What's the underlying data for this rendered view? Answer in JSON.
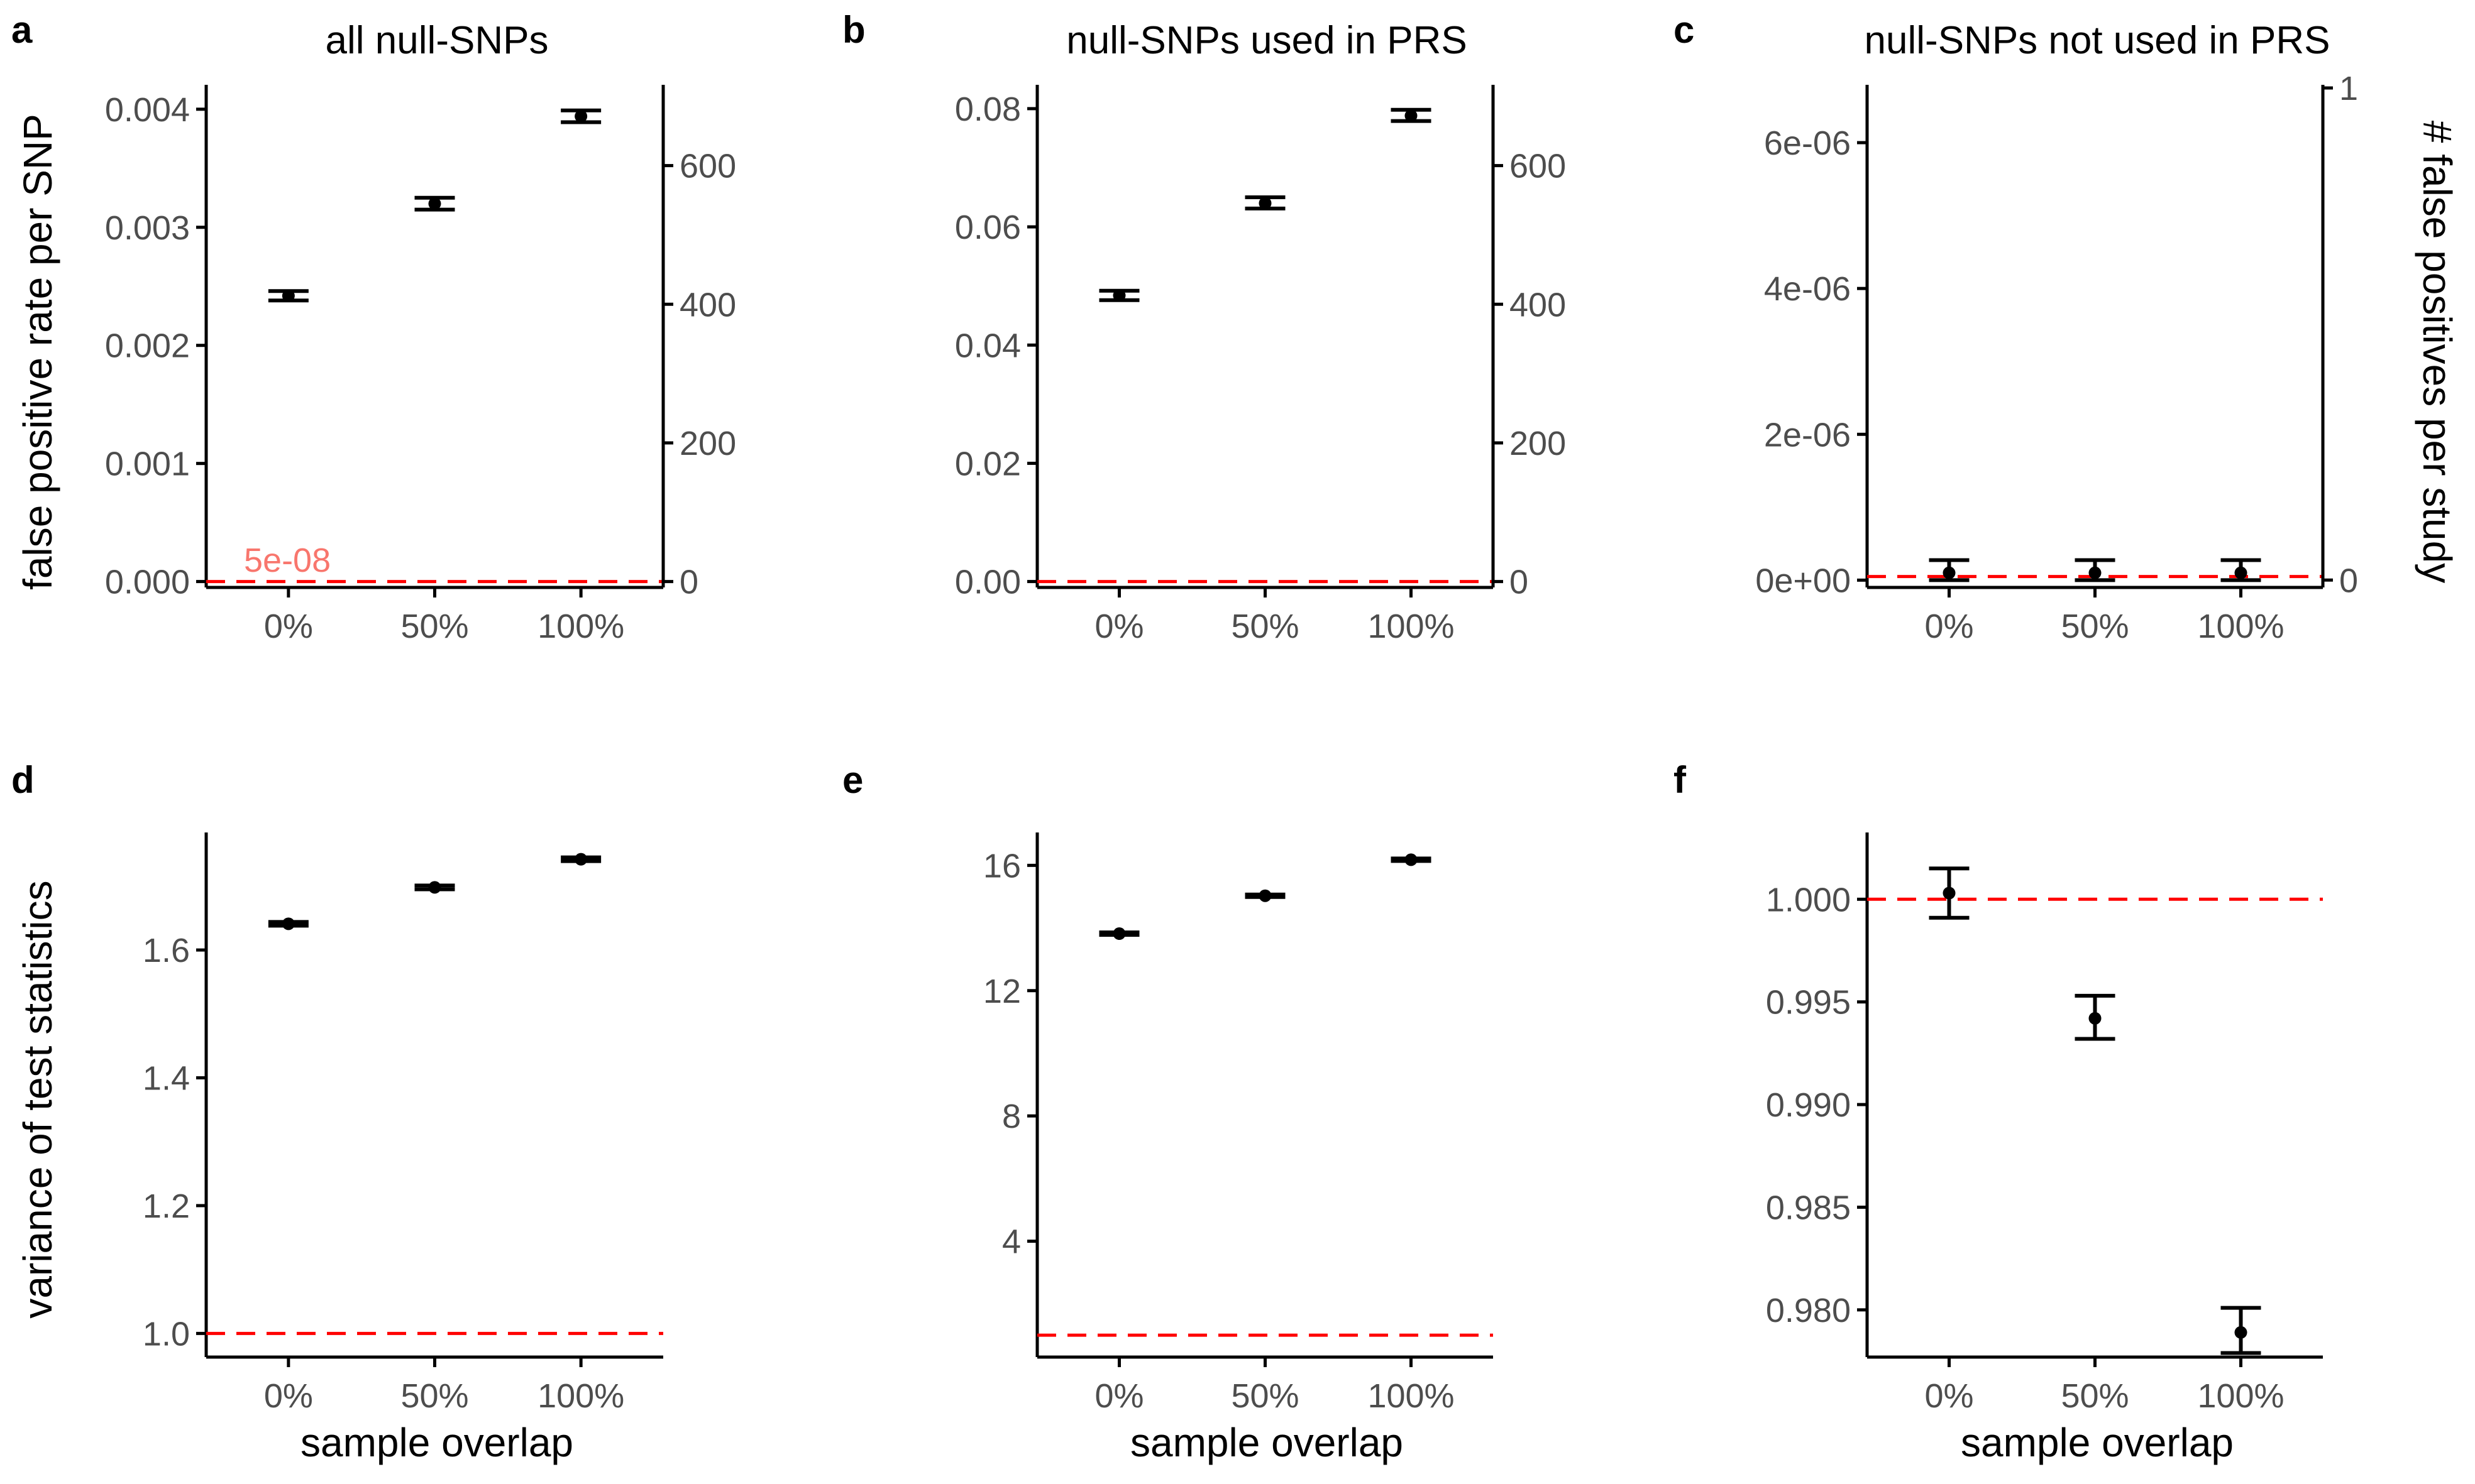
{
  "axis_titles": {
    "left_top": "false positive rate per SNP",
    "right_top": "# false positives per study",
    "left_bottom": "variance of test statistics",
    "x_bottom": "sample overlap"
  },
  "annotation": "5e-08",
  "chart_data": [
    {
      "type": "scatter",
      "panel": "a",
      "title": "all null-SNPs",
      "categories": [
        "0%",
        "50%",
        "100%"
      ],
      "values": [
        0.00242,
        0.0032,
        0.00394
      ],
      "lower": [
        0.00238,
        0.00315,
        0.00389
      ],
      "upper": [
        0.00246,
        0.00325,
        0.00399
      ],
      "ylim": [
        -5e-05,
        0.00418
      ],
      "yticks": [
        0,
        0.001,
        0.002,
        0.003,
        0.004
      ],
      "ytick_labels": [
        "0.000",
        "0.001",
        "0.002",
        "0.003",
        "0.004"
      ],
      "y2lim": [
        -8.5,
        712
      ],
      "y2ticks": [
        0,
        200,
        400,
        600
      ],
      "y2tick_labels": [
        "0",
        "200",
        "400",
        "600"
      ],
      "refline": 5e-08
    },
    {
      "type": "scatter",
      "panel": "b",
      "title": "null-SNPs used in PRS",
      "categories": [
        "0%",
        "50%",
        "100%"
      ],
      "values": [
        0.0484,
        0.064,
        0.0788
      ],
      "lower": [
        0.0476,
        0.0631,
        0.0779
      ],
      "upper": [
        0.0492,
        0.065,
        0.0798
      ],
      "ylim": [
        -0.001,
        0.0835
      ],
      "yticks": [
        0,
        0.02,
        0.04,
        0.06,
        0.08
      ],
      "ytick_labels": [
        "0.00",
        "0.02",
        "0.04",
        "0.06",
        "0.08"
      ],
      "y2lim": [
        -8.5,
        712
      ],
      "y2ticks": [
        0,
        200,
        400,
        600
      ],
      "y2tick_labels": [
        "0",
        "200",
        "400",
        "600"
      ],
      "refline": 0
    },
    {
      "type": "scatter",
      "panel": "c",
      "title": "null-SNPs not used in PRS",
      "categories": [
        "0%",
        "50%",
        "100%"
      ],
      "values": [
        1e-07,
        1e-07,
        1e-07
      ],
      "lower": [
        0,
        0,
        0
      ],
      "upper": [
        2.75e-07,
        2.75e-07,
        2.75e-07
      ],
      "ylim": [
        -1e-07,
        6.75e-06
      ],
      "yticks": [
        0,
        2e-06,
        4e-06,
        6e-06
      ],
      "ytick_labels": [
        "0e+00",
        "2e-06",
        "4e-06",
        "6e-06"
      ],
      "y2lim": [
        -0.015,
        1.0
      ],
      "y2ticks": [
        0,
        1
      ],
      "y2tick_labels": [
        "0",
        "1"
      ],
      "refline": 5e-08
    },
    {
      "type": "scatter",
      "panel": "d",
      "title": "",
      "categories": [
        "0%",
        "50%",
        "100%"
      ],
      "values": [
        1.641,
        1.698,
        1.742
      ],
      "lower": [
        1.638,
        1.695,
        1.739
      ],
      "upper": [
        1.644,
        1.701,
        1.745
      ],
      "ylim": [
        0.963,
        1.779
      ],
      "yticks": [
        1.0,
        1.2,
        1.4,
        1.6
      ],
      "ytick_labels": [
        "1.0",
        "1.2",
        "1.4",
        "1.6"
      ],
      "refline": 1.0
    },
    {
      "type": "scatter",
      "panel": "e",
      "title": "",
      "categories": [
        "0%",
        "50%",
        "100%"
      ],
      "values": [
        13.82,
        15.03,
        16.18
      ],
      "lower": [
        13.78,
        14.99,
        16.14
      ],
      "upper": [
        13.86,
        15.07,
        16.22
      ],
      "ylim": [
        0.3,
        16.95
      ],
      "yticks": [
        4,
        8,
        12,
        16
      ],
      "ytick_labels": [
        "4",
        "8",
        "12",
        "16"
      ],
      "refline": 1.0
    },
    {
      "type": "scatter",
      "panel": "f",
      "title": "",
      "categories": [
        "0%",
        "50%",
        "100%"
      ],
      "values": [
        1.0003,
        0.9942,
        0.9789
      ],
      "lower": [
        0.9991,
        0.9932,
        0.9779
      ],
      "upper": [
        1.0015,
        0.9953,
        0.9801
      ],
      "ylim": [
        0.9777,
        1.0031
      ],
      "yticks": [
        0.98,
        0.985,
        0.99,
        0.995,
        1.0
      ],
      "ytick_labels": [
        "0.980",
        "0.985",
        "0.990",
        "0.995",
        "1.000"
      ],
      "refline": 1.0
    }
  ]
}
